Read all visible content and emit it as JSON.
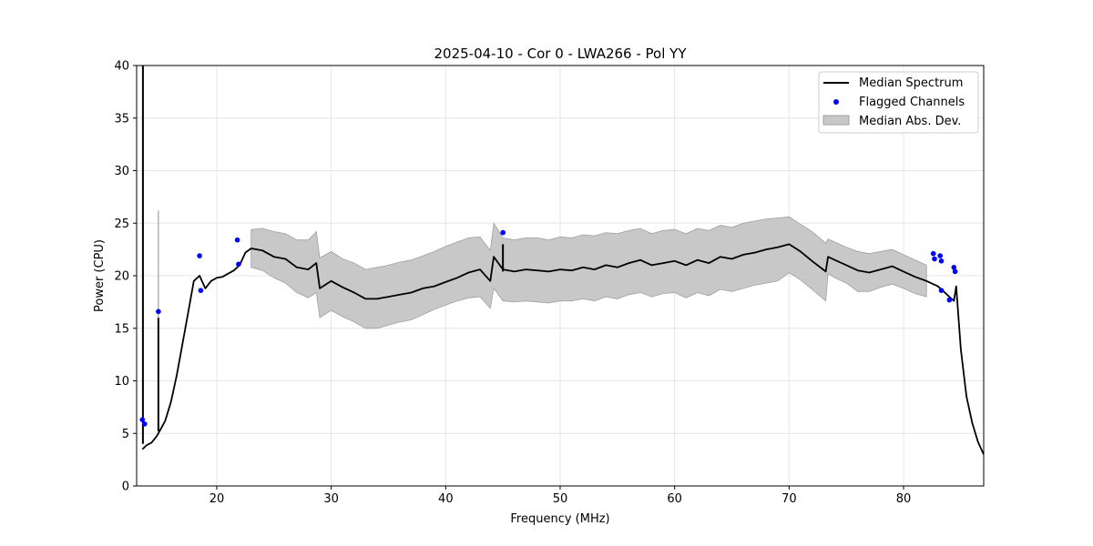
{
  "chart_data": {
    "type": "line",
    "title": "2025-04-10 - Cor 0 - LWA266 - Pol YY",
    "xlabel": "Frequency (MHz)",
    "ylabel": "Power (CPU)",
    "xlim": [
      13,
      87
    ],
    "ylim": [
      0,
      40
    ],
    "xticks": [
      20,
      30,
      40,
      50,
      60,
      70,
      80
    ],
    "yticks": [
      0,
      5,
      10,
      15,
      20,
      25,
      30,
      35,
      40
    ],
    "grid": true,
    "legend_position": "top-right",
    "legend": [
      "Median Spectrum",
      "Flagged Channels",
      "Median Abs. Dev."
    ],
    "colors": {
      "median": "#000000",
      "flagged": "#0000ff",
      "mad_fill": "#c8c8c8",
      "mad_edge": "#a0a0a0",
      "grid": "#e6e6e6"
    },
    "series": [
      {
        "name": "Median Spectrum",
        "x": [
          13.5,
          13.9,
          14.3,
          14.8,
          15.5,
          16.0,
          16.5,
          17.0,
          17.5,
          18.0,
          18.5,
          19.0,
          19.5,
          20.0,
          20.5,
          21.0,
          21.5,
          22.0,
          22.5,
          23.0,
          24.0,
          25.0,
          26.0,
          27.0,
          28.0,
          28.7,
          29.0,
          30.0,
          31.0,
          32.0,
          33.0,
          34.0,
          35.0,
          36.0,
          37.0,
          38.0,
          39.0,
          40.0,
          41.0,
          42.0,
          43.0,
          43.9,
          44.2,
          45.0,
          46.0,
          47.0,
          48.0,
          49.0,
          50.0,
          51.0,
          52.0,
          53.0,
          54.0,
          55.0,
          56.0,
          57.0,
          58.0,
          59.0,
          60.0,
          61.0,
          62.0,
          63.0,
          64.0,
          65.0,
          66.0,
          67.0,
          68.0,
          69.0,
          70.0,
          71.0,
          72.0,
          73.2,
          73.4,
          74.0,
          75.0,
          76.0,
          77.0,
          78.0,
          79.0,
          80.0,
          81.0,
          82.0,
          83.0,
          83.5,
          84.0,
          84.4,
          84.6,
          85.0,
          85.5,
          86.0,
          86.5,
          87.0
        ],
        "values": [
          3.5,
          3.9,
          4.1,
          4.8,
          6.2,
          8.0,
          10.5,
          13.5,
          16.5,
          19.5,
          20.0,
          18.8,
          19.5,
          19.8,
          19.9,
          20.2,
          20.5,
          21.0,
          22.2,
          22.6,
          22.4,
          21.8,
          21.6,
          20.8,
          20.6,
          21.2,
          18.8,
          19.5,
          18.9,
          18.4,
          17.8,
          17.8,
          18.0,
          18.2,
          18.4,
          18.8,
          19.0,
          19.4,
          19.8,
          20.3,
          20.6,
          19.5,
          21.8,
          20.6,
          20.4,
          20.6,
          20.5,
          20.4,
          20.6,
          20.5,
          20.8,
          20.6,
          21.0,
          20.8,
          21.2,
          21.5,
          21.0,
          21.2,
          21.4,
          21.0,
          21.5,
          21.2,
          21.8,
          21.6,
          22.0,
          22.2,
          22.5,
          22.7,
          23.0,
          22.3,
          21.4,
          20.4,
          21.8,
          21.5,
          21.0,
          20.5,
          20.3,
          20.6,
          20.9,
          20.4,
          19.9,
          19.5,
          19.0,
          18.5,
          18.0,
          17.6,
          19.0,
          13.0,
          8.5,
          6.0,
          4.2,
          3.0
        ]
      },
      {
        "name": "Median Abs. Dev.",
        "x": [
          23.0,
          24.0,
          25.0,
          26.0,
          27.0,
          28.0,
          28.7,
          29.0,
          30.0,
          31.0,
          32.0,
          33.0,
          34.0,
          35.0,
          36.0,
          37.0,
          38.0,
          39.0,
          40.0,
          41.0,
          42.0,
          43.0,
          43.9,
          44.2,
          45.0,
          46.0,
          47.0,
          48.0,
          49.0,
          50.0,
          51.0,
          52.0,
          53.0,
          54.0,
          55.0,
          56.0,
          57.0,
          58.0,
          59.0,
          60.0,
          61.0,
          62.0,
          63.0,
          64.0,
          65.0,
          66.0,
          67.0,
          68.0,
          69.0,
          70.0,
          71.0,
          72.0,
          73.2,
          73.4,
          74.0,
          75.0,
          76.0,
          77.0,
          78.0,
          79.0,
          80.0,
          81.0,
          82.0
        ],
        "upper": [
          24.4,
          24.5,
          24.2,
          24.0,
          23.4,
          23.4,
          24.2,
          21.7,
          22.3,
          21.6,
          21.2,
          20.6,
          20.8,
          21.0,
          21.3,
          21.5,
          21.9,
          22.3,
          22.8,
          23.2,
          23.6,
          23.7,
          22.4,
          25.0,
          23.6,
          23.4,
          23.6,
          23.6,
          23.4,
          23.7,
          23.6,
          23.9,
          23.8,
          24.1,
          24.0,
          24.3,
          24.5,
          24.0,
          24.3,
          24.4,
          24.0,
          24.5,
          24.3,
          24.8,
          24.6,
          25.0,
          25.2,
          25.4,
          25.5,
          25.6,
          24.9,
          24.2,
          23.1,
          23.5,
          23.2,
          22.7,
          22.3,
          22.1,
          22.3,
          22.5,
          22.0,
          21.5,
          21.0
        ],
        "lower": [
          20.8,
          20.5,
          19.8,
          19.3,
          18.4,
          17.9,
          18.4,
          16.0,
          16.7,
          16.1,
          15.6,
          15.0,
          15.0,
          15.3,
          15.6,
          15.8,
          16.3,
          16.8,
          17.2,
          17.6,
          17.9,
          18.0,
          16.9,
          18.8,
          17.6,
          17.5,
          17.6,
          17.5,
          17.4,
          17.6,
          17.6,
          17.8,
          17.6,
          18.0,
          17.8,
          18.2,
          18.4,
          18.0,
          18.3,
          18.4,
          17.9,
          18.4,
          18.1,
          18.7,
          18.5,
          18.8,
          19.1,
          19.3,
          19.5,
          20.3,
          19.6,
          18.7,
          17.6,
          20.2,
          19.8,
          19.3,
          18.5,
          18.5,
          18.9,
          19.2,
          18.8,
          18.3,
          18.0
        ]
      },
      {
        "name": "Flagged Channels",
        "x": [
          13.5,
          13.7,
          14.9,
          18.5,
          18.6,
          21.8,
          21.9,
          45.0,
          82.6,
          82.7,
          83.2,
          83.3,
          83.3,
          84.0,
          84.4,
          84.5
        ],
        "values": [
          6.3,
          5.9,
          16.6,
          21.9,
          18.6,
          23.4,
          21.1,
          24.1,
          22.1,
          21.6,
          21.9,
          21.4,
          18.6,
          17.7,
          20.8,
          20.4
        ]
      }
    ],
    "spikes": [
      {
        "x": 13.55,
        "base": 4.0,
        "peak": 40
      },
      {
        "x": 14.9,
        "base": 5.2,
        "peak": 16.0
      },
      {
        "x": 45.0,
        "base": 20.4,
        "peak": 23.0
      }
    ],
    "faint_spike": {
      "x": 14.9,
      "top": 26.2
    }
  }
}
